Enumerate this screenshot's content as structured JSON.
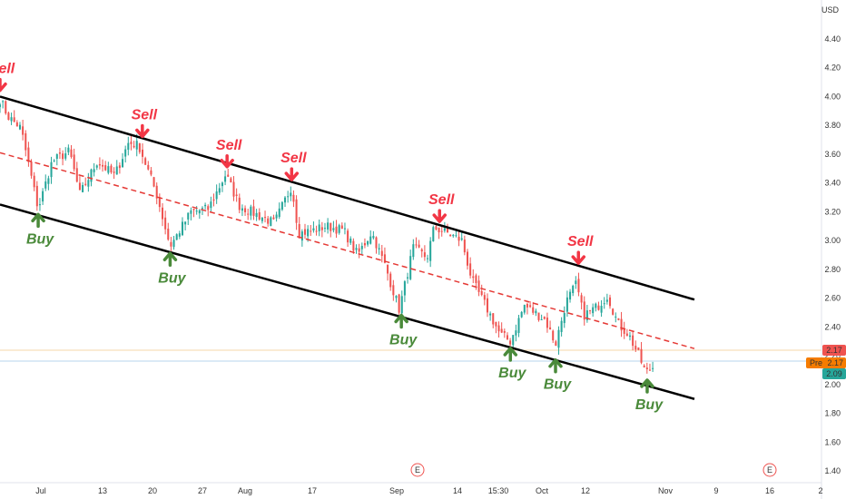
{
  "chart_data": {
    "type": "candlestick",
    "currency": "USD",
    "y_range": [
      1.3,
      4.62
    ],
    "y_ticks": [
      "4.40",
      "4.20",
      "4.00",
      "3.80",
      "3.60",
      "3.40",
      "3.20",
      "3.00",
      "2.80",
      "2.60",
      "2.40",
      "2.20",
      "2.00",
      "1.80",
      "1.60",
      "1.40"
    ],
    "x_ticks": [
      "Jul",
      "13",
      "20",
      "27",
      "Aug",
      "17",
      "Sep",
      "14",
      "15:30",
      "Oct",
      "12",
      "Nov",
      "9",
      "16",
      "2"
    ],
    "price_tags": {
      "last": "2.17",
      "pre_label": "Pre",
      "pre": "2.17",
      "current": "2.09"
    },
    "earnings_marker": "E",
    "colors": {
      "up": "#26a69a",
      "down": "#ef5350",
      "channel": "#000000",
      "midline": "#e53935",
      "sell": "#f23645",
      "buy": "#4a8a3a",
      "last_tag": "#ef5350",
      "pre_tag": "#f57c00",
      "current_tag": "#26a69a"
    },
    "channel": {
      "upper": [
        [
          0.0,
          4.0
        ],
        [
          1.0,
          2.59
        ]
      ],
      "middle": [
        [
          0.0,
          3.61
        ],
        [
          1.0,
          2.25
        ]
      ],
      "lower": [
        [
          0.0,
          3.25
        ],
        [
          1.0,
          1.9
        ]
      ]
    },
    "anchors": [
      [
        0.0,
        3.98
      ],
      [
        0.012,
        3.86
      ],
      [
        0.03,
        3.78
      ],
      [
        0.055,
        3.22
      ],
      [
        0.075,
        3.55
      ],
      [
        0.1,
        3.62
      ],
      [
        0.115,
        3.32
      ],
      [
        0.14,
        3.55
      ],
      [
        0.165,
        3.45
      ],
      [
        0.185,
        3.68
      ],
      [
        0.2,
        3.66
      ],
      [
        0.225,
        3.33
      ],
      [
        0.245,
        2.96
      ],
      [
        0.275,
        3.2
      ],
      [
        0.3,
        3.22
      ],
      [
        0.325,
        3.46
      ],
      [
        0.345,
        3.24
      ],
      [
        0.37,
        3.18
      ],
      [
        0.395,
        3.12
      ],
      [
        0.42,
        3.38
      ],
      [
        0.43,
        3.05
      ],
      [
        0.45,
        3.07
      ],
      [
        0.47,
        3.1
      ],
      [
        0.495,
        3.07
      ],
      [
        0.515,
        2.9
      ],
      [
        0.535,
        3.06
      ],
      [
        0.555,
        2.82
      ],
      [
        0.575,
        2.52
      ],
      [
        0.595,
        2.95
      ],
      [
        0.615,
        2.88
      ],
      [
        0.625,
        3.09
      ],
      [
        0.645,
        3.05
      ],
      [
        0.665,
        3.0
      ],
      [
        0.68,
        2.72
      ],
      [
        0.7,
        2.54
      ],
      [
        0.72,
        2.35
      ],
      [
        0.735,
        2.3
      ],
      [
        0.755,
        2.55
      ],
      [
        0.77,
        2.5
      ],
      [
        0.785,
        2.45
      ],
      [
        0.8,
        2.28
      ],
      [
        0.815,
        2.57
      ],
      [
        0.83,
        2.7
      ],
      [
        0.84,
        2.48
      ],
      [
        0.86,
        2.54
      ],
      [
        0.875,
        2.62
      ],
      [
        0.89,
        2.42
      ],
      [
        0.905,
        2.35
      ],
      [
        0.92,
        2.2
      ],
      [
        0.93,
        2.08
      ],
      [
        0.94,
        2.12
      ]
    ],
    "signals": [
      {
        "type": "sell",
        "label": "Sell",
        "x": 0.0,
        "y": 4.03
      },
      {
        "type": "sell",
        "label": "Sell",
        "x": 0.205,
        "y": 3.71
      },
      {
        "type": "sell",
        "label": "Sell",
        "x": 0.327,
        "y": 3.5
      },
      {
        "type": "sell",
        "label": "Sell",
        "x": 0.42,
        "y": 3.41
      },
      {
        "type": "sell",
        "label": "Sell",
        "x": 0.633,
        "y": 3.12
      },
      {
        "type": "sell",
        "label": "Sell",
        "x": 0.833,
        "y": 2.83
      },
      {
        "type": "buy",
        "label": "Buy",
        "x": 0.055,
        "y": 3.2
      },
      {
        "type": "buy",
        "label": "Buy",
        "x": 0.245,
        "y": 2.93
      },
      {
        "type": "buy",
        "label": "Buy",
        "x": 0.578,
        "y": 2.5
      },
      {
        "type": "buy",
        "label": "Buy",
        "x": 0.735,
        "y": 2.27
      },
      {
        "type": "buy",
        "label": "Buy",
        "x": 0.8,
        "y": 2.19
      },
      {
        "type": "buy",
        "label": "Buy",
        "x": 0.932,
        "y": 2.05
      }
    ]
  }
}
